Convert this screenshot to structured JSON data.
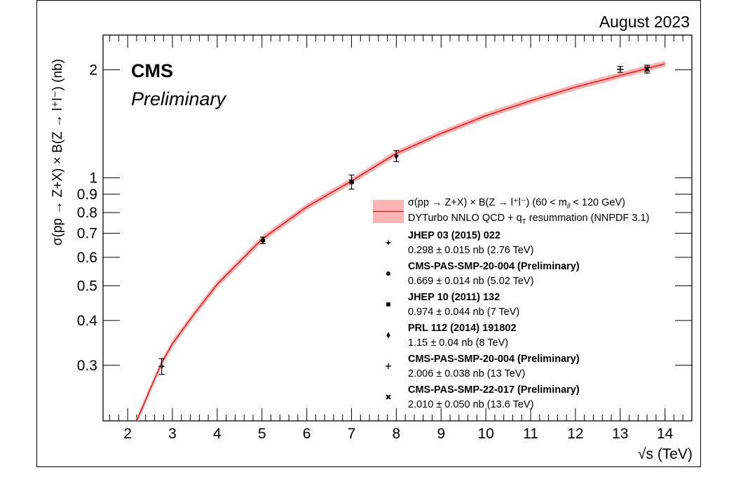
{
  "header": {
    "date_label": "August 2023"
  },
  "cms_label": {
    "experiment": "CMS",
    "status": "Preliminary"
  },
  "chart_data": {
    "type": "scatter",
    "xlabel": "√s (TeV)",
    "ylabel": "σ(pp → Z+X) × B(Z → l⁺l⁻) (nb)",
    "xlim": [
      1.45,
      14.6
    ],
    "ylim": [
      0.21,
      2.5
    ],
    "y_scale": "log",
    "x_ticks": [
      2,
      3,
      4,
      5,
      6,
      7,
      8,
      9,
      10,
      11,
      12,
      13,
      14
    ],
    "y_ticks": [
      {
        "value": 0.3,
        "label": "0.3"
      },
      {
        "value": 0.4,
        "label": "0.4"
      },
      {
        "value": 0.5,
        "label": "0.5"
      },
      {
        "value": 0.6,
        "label": "0.6"
      },
      {
        "value": 0.7,
        "label": "0.7"
      },
      {
        "value": 0.8,
        "label": "0.8"
      },
      {
        "value": 0.9,
        "label": "0.9"
      },
      {
        "value": 1,
        "label": "1"
      },
      {
        "value": 2,
        "label": "2"
      }
    ],
    "theory": {
      "legend_line1": "σ(pp → Z+X) × B(Z → l⁺l⁻) (60 < m",
      "legend_line1_sub": "ll",
      "legend_line1_end": " < 120 GeV)",
      "legend_line2": "DYTurbo NNLO QCD + q",
      "legend_line2_sub": "T",
      "legend_line2_end": " resummation (NNPDF 3.1)",
      "color": "#ff0000",
      "band_color": "#ffb3b3",
      "x": [
        2.2,
        2.5,
        2.76,
        3,
        3.5,
        4,
        5,
        6,
        7,
        8,
        9,
        10,
        11,
        12,
        13,
        13.6,
        14
      ],
      "y": [
        0.21,
        0.257,
        0.305,
        0.345,
        0.42,
        0.505,
        0.675,
        0.83,
        0.98,
        1.17,
        1.33,
        1.49,
        1.64,
        1.79,
        1.93,
        2.02,
        2.08
      ],
      "band_halfwidth": [
        0.005,
        0.006,
        0.007,
        0.008,
        0.009,
        0.011,
        0.014,
        0.017,
        0.02,
        0.023,
        0.026,
        0.029,
        0.032,
        0.035,
        0.038,
        0.04,
        0.041
      ]
    },
    "series": [
      {
        "name": "JHEP 03 (2015) 022",
        "desc": "0.298 ± 0.015 nb (2.76 TeV)",
        "marker": "star4",
        "x": 2.76,
        "y": 0.298,
        "err": 0.015
      },
      {
        "name": "CMS-PAS-SMP-20-004 (Preliminary)",
        "desc": "0.669 ± 0.014 nb (5.02 TeV)",
        "marker": "circle",
        "x": 5.02,
        "y": 0.669,
        "err": 0.014
      },
      {
        "name": "JHEP 10 (2011) 132",
        "desc": "0.974 ± 0.044 nb (7 TeV)",
        "marker": "square",
        "x": 7,
        "y": 0.974,
        "err": 0.044
      },
      {
        "name": "PRL 112 (2014) 191802",
        "desc": "1.15 ± 0.04 nb (8 TeV)",
        "marker": "diamond",
        "x": 8,
        "y": 1.15,
        "err": 0.04
      },
      {
        "name": "CMS-PAS-SMP-20-004 (Preliminary)",
        "desc": "2.006 ± 0.038 nb (13 TeV)",
        "marker": "plus",
        "x": 13,
        "y": 2.006,
        "err": 0.038
      },
      {
        "name": "CMS-PAS-SMP-22-017 (Preliminary)",
        "desc": "2.010 ± 0.050 nb (13.6 TeV)",
        "marker": "cross",
        "x": 13.6,
        "y": 2.01,
        "err": 0.05
      }
    ]
  }
}
